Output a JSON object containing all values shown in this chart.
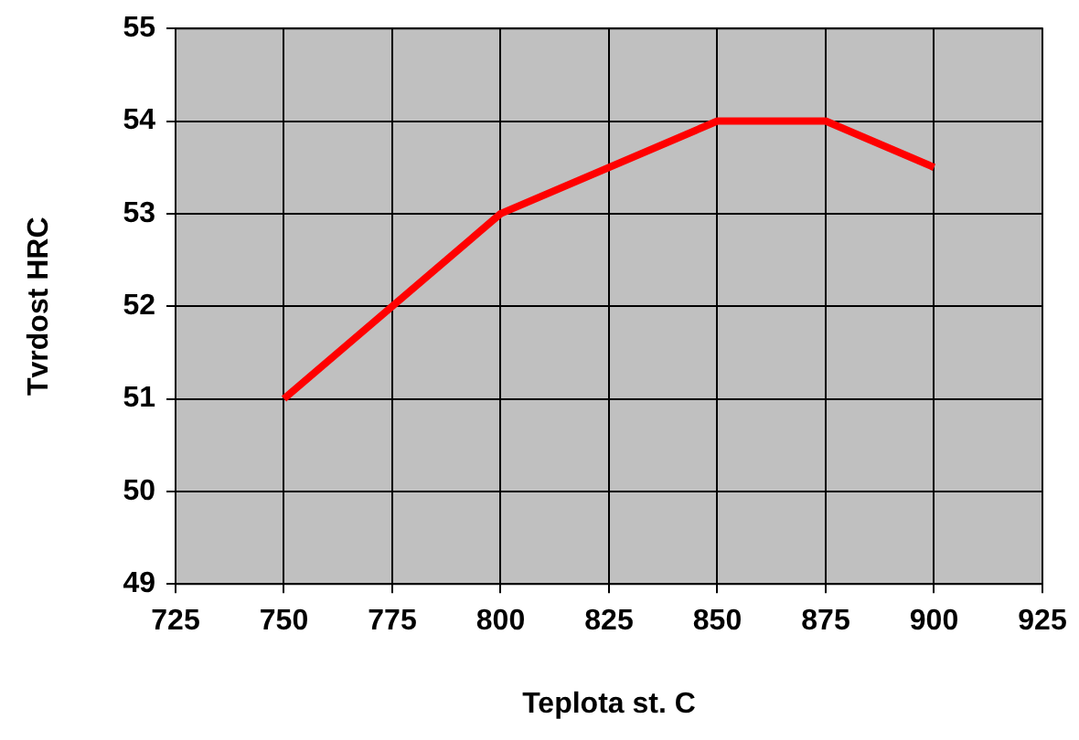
{
  "chart_data": {
    "type": "line",
    "xlabel": "Teplota st. C",
    "ylabel": "Tvrdost HRC",
    "x": [
      750,
      800,
      850,
      875,
      900
    ],
    "series": [
      {
        "color": "#ff0000",
        "values": [
          51,
          53,
          54,
          54,
          53.5
        ]
      }
    ],
    "xlim": [
      725,
      925
    ],
    "xticks": [
      725,
      750,
      775,
      800,
      825,
      850,
      875,
      900,
      925
    ],
    "ylim": [
      49,
      55
    ],
    "yticks": [
      49,
      50,
      51,
      52,
      53,
      54,
      55
    ],
    "grid": true,
    "legend": false,
    "marker": "none",
    "line_style": "solid"
  }
}
